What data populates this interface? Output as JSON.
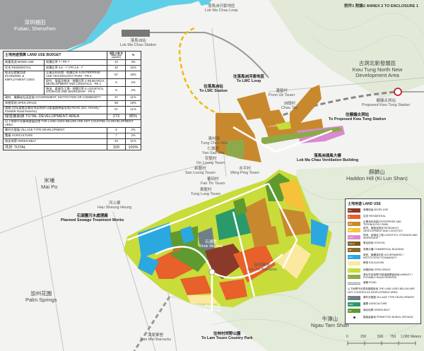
{
  "header": {
    "annex": "附件1 附錄2  ANNEX 2 TO ENCLOSURE 1"
  },
  "places": {
    "futian": {
      "zh": "深圳福田",
      "en": "Futian, Shenzhen"
    },
    "lmc_station": {
      "zh": "落馬洲站",
      "en": "Lok Ma Chau Station"
    },
    "lmc_loop": {
      "zh": "落馬洲河套地區",
      "en": "Lok Ma Chau Loop"
    },
    "to_lmc_station": {
      "zh": "往落馬洲站",
      "en": "To LMC Station"
    },
    "to_lmc_loop": {
      "zh": "往落馬洲河套地區",
      "en": "To LMC Loop"
    },
    "ktn": {
      "zh": "古洞北新發展區",
      "en": "Kwu Tung North New Development Area"
    },
    "kt_station": {
      "zh": "擬議古洞站",
      "en": "Proposed Kwu Tung Station"
    },
    "to_kt_station": {
      "zh": "往擬議古洞站",
      "en": "To Proposed Kwu Tung Station"
    },
    "vent": {
      "zh": "落馬洲通風大樓",
      "en": "Lok Ma Chau Ventilation Building"
    },
    "poon_uk": {
      "zh": "潘屋村",
      "en": "Poon Uk Tsuen"
    },
    "chau_tau": {
      "zh": "洲頭村",
      "en": "Chau Tau"
    },
    "tung_chun_wai": {
      "zh": "東村圍",
      "en": "Tung Chun Wai"
    },
    "yan_sau_wai": {
      "zh": "仁壽圍",
      "en": "Yan Sau Wai"
    },
    "on_loong": {
      "zh": "安龍村",
      "en": "On Loong Tsuen"
    },
    "san_loong": {
      "zh": "新龍村",
      "en": "San Loong Tsuen"
    },
    "wing_ping": {
      "zh": "永平村",
      "en": "Wing Ping Tsuen"
    },
    "fan_tin": {
      "zh": "蕃田村",
      "en": "Fan Tin Tsuen"
    },
    "tung_lung": {
      "zh": "東龍村",
      "en": "Tung Lung Tsuen"
    },
    "mai_po": {
      "zh": "米埔",
      "en": "Mai Po"
    },
    "ho_sheung_heung": {
      "zh": "河上鄉",
      "en": "Hau Sheung Heung"
    },
    "shek_wu_wai": {
      "zh": "石湖圍",
      "en": "Shek Wu Wai"
    },
    "haddon": {
      "zh": "麒麟山",
      "en": "Haddon Hill (Ki Lun Shan)"
    },
    "palm": {
      "zh": "加州花園",
      "en": "Palm Springs"
    },
    "ngau_tam": {
      "zh": "牛潭山",
      "en": "Ngau Tam Shan"
    },
    "country_park": {
      "zh": "往林村郊野公園",
      "en": "To Lam Tsuen Country Park"
    },
    "barracks": {
      "zh": "潭尾軍營",
      "en": "Tam Mei Barracks"
    },
    "san_tin_barracks": {
      "zh": "新田軍營",
      "en": "San Tin Barracks"
    },
    "town_park": {
      "zh": "市鎮公園",
      "en": "Town Park"
    },
    "sewage": {
      "zh": "石湖圍污水處理廠",
      "en": "Planned Sewage Treatment Works"
    }
  },
  "budget": {
    "title": "土地用途預算 LAND USE BUDGET",
    "col_area": "面積 (公頃) 約 AREA (HA) (ABOUT)",
    "col_pct": "%",
    "rows": [
      {
        "use": "商業用途 MIXED USE",
        "detail": "地積比率 7 / PR 7",
        "area": "10",
        "pct": "3%"
      },
      {
        "use": "住宅 RESIDENTIAL",
        "detail": "地積比率 3.6 - 7 / PR 3.6 - 7",
        "area": "33",
        "pct": "10%"
      },
      {
        "use": "經濟及就業用途 ECONOMIC & EMPLOYMENT USES",
        "detail": "企業及科技園 - 地積比率 5 ENTERPRISE AND TECHNOLOGY PARK - PR 5",
        "area": "57",
        "pct": "18%"
      },
      {
        "use": "",
        "detail": "研究、發展及物流 - 地積比率 4 RESEARCH, DEVELOPMENT AND LOGISTICS - PR 4",
        "area": "5",
        "pct": "2%"
      },
      {
        "use": "",
        "detail": "物流、倉儲及工場 - 地積比率 5 LOGISTICS, STORAGE AND WORKSHOP - PR 5",
        "area": "8",
        "pct": "2%"
      },
      {
        "use": "政府、機構或社區設施 GOVERNMENT, INSTITUTION OR COMMUNITY",
        "detail": "",
        "area": "37",
        "pct": "11%"
      },
      {
        "use": "休憩用地 OPEN SPACE",
        "detail": "",
        "area": "58",
        "pct": "18%"
      },
      {
        "use": "道路 (包括道路及美化市容地帶/可能道路預留用地) ROAD (incl. Amenity / Possible Road Reserve)",
        "detail": "",
        "area": "67",
        "pct": "21%"
      }
    ],
    "total_dev": {
      "label": "總發展面積 TOTAL DEVELOPMENT AREA",
      "area": "273",
      "pct": "85%"
    },
    "note": "以下地帶不計算為發展用地 THE LAND USES BELOW ARE NOT COUNTED AS DEVELOPMENT AREA",
    "rows2": [
      {
        "use": "鄉村式發展 VILLAGE TYPE DEVELOPMENT",
        "area": "6",
        "pct": "2%"
      },
      {
        "use": "農業 AGRICULTURE",
        "area": "7",
        "pct": "2%"
      },
      {
        "use": "綠化地帶 GREEN BELT",
        "area": "34",
        "pct": "11%"
      }
    ],
    "total": {
      "label": "共計 TOTAL",
      "area": "320",
      "pct": "100%"
    }
  },
  "legend": {
    "title": "土地用途 LAND USE",
    "items": [
      {
        "code": "MU",
        "label": "商業用途 MIXED USE",
        "color": "#8b3a2a"
      },
      {
        "code": "R",
        "label": "住宅 RESIDENTIAL",
        "color": "#e8602a"
      },
      {
        "code": "EAT",
        "label": "企業及科技園 ENTERPRISE AND TECHNOLOGY PARK",
        "color": "#c8892e"
      },
      {
        "code": "RDL",
        "label": "研究、發展及物流 RESEARCH, DEVELOPMENT AND LOGISTICS",
        "color": "#f5c23a"
      },
      {
        "code": "LSW",
        "label": "物流、倉儲及工場 LOGISTICS, STORAGE AND WORKSHOP",
        "color": "#d98ad0"
      },
      {
        "code": "Station",
        "label": "車站用地 STATION",
        "color": "#7a5a20"
      },
      {
        "code": "CB",
        "label": "商業大樓 COMMERCIAL BUILDING",
        "color": "#8a6a2a"
      },
      {
        "code": "G/IC",
        "label": "政府、機構或社區 GOVERNMENT / INSTITUTION / COMMUNITY",
        "color": "#2ba8e0"
      },
      {
        "code": "E",
        "label": "教育 EDUCATION",
        "color": "#fbe9a0"
      },
      {
        "code": "O",
        "label": "休憩用地 OPEN SPACE",
        "color": "#c8dc3a"
      },
      {
        "code": "A",
        "label": "美化市容地帶/可能道路預留用地 AMENITY / POSSIBLE ROAD RESERVE",
        "color": "#8daa4a"
      },
      {
        "code": "",
        "label": "道路 ROAD",
        "color": "road"
      }
    ],
    "note": "以下地帶不計算為發展用地 THE LAND USES BELOW ARE NOT COUNTED AS DEVELOPMENT AREA",
    "items2": [
      {
        "code": "V",
        "label": "鄉村式發展 VILLAGE TYPE DEVELOPMENT",
        "color": "#6e7f86"
      },
      {
        "code": "AGR",
        "label": "農業 AGRICULTURE",
        "color": "#2a9a6a"
      },
      {
        "code": "GB",
        "label": "綠化地帶 GREEN BELT",
        "color": "#5e9a30"
      },
      {
        "code": "",
        "label": "擬保留墓地 PERMITTED BURIAL GROUND",
        "color": "dot"
      }
    ]
  },
  "scale": {
    "ticks": [
      "0",
      "250",
      "500",
      "750",
      "1,000 Meters"
    ]
  }
}
